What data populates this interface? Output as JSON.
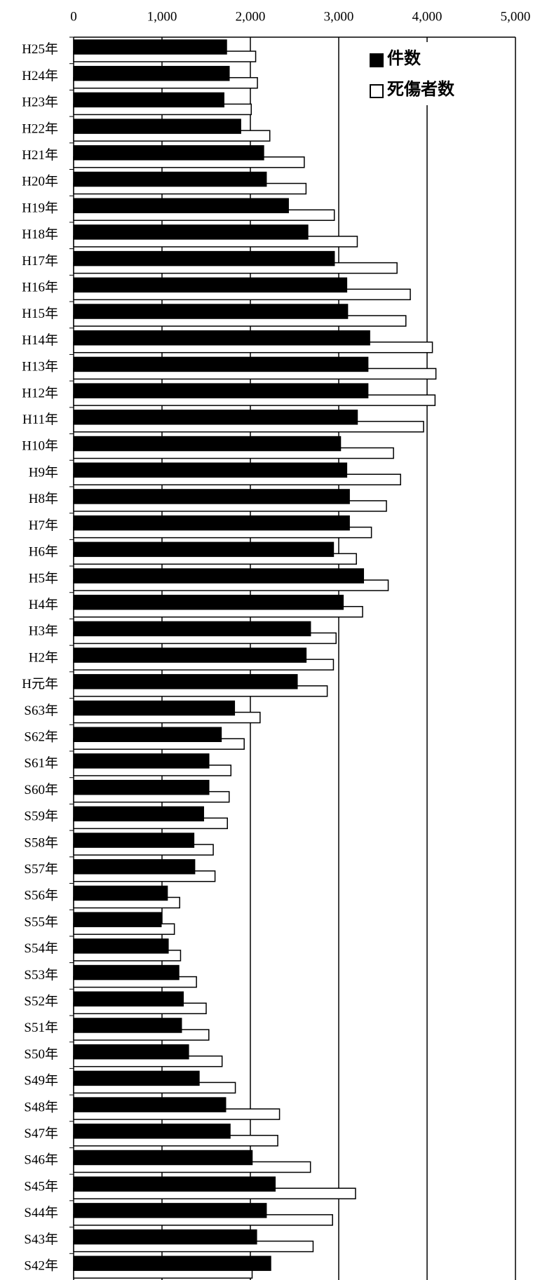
{
  "chart_data": {
    "type": "bar",
    "orientation": "horizontal",
    "categories": [
      "H25年",
      "H24年",
      "H23年",
      "H22年",
      "H21年",
      "H20年",
      "H19年",
      "H18年",
      "H17年",
      "H16年",
      "H15年",
      "H14年",
      "H13年",
      "H12年",
      "H11年",
      "H10年",
      "H9年",
      "H8年",
      "H7年",
      "H6年",
      "H5年",
      "H4年",
      "H3年",
      "H2年",
      "H元年",
      "S63年",
      "S62年",
      "S61年",
      "S60年",
      "S59年",
      "S58年",
      "S57年",
      "S56年",
      "S55年",
      "S54年",
      "S53年",
      "S52年",
      "S51年",
      "S50年",
      "S49年",
      "S48年",
      "S47年",
      "S46年",
      "S45年",
      "S44年",
      "S43年",
      "S42年"
    ],
    "series": [
      {
        "name": "件数",
        "color": "#000000",
        "values": [
          1730,
          1760,
          1700,
          1890,
          2150,
          2180,
          2430,
          2650,
          2950,
          3090,
          3100,
          3350,
          3330,
          3330,
          3210,
          3020,
          3090,
          3120,
          3120,
          2940,
          3280,
          3050,
          2680,
          2630,
          2530,
          1820,
          1670,
          1530,
          1530,
          1470,
          1360,
          1370,
          1060,
          990,
          1070,
          1190,
          1240,
          1220,
          1300,
          1420,
          1720,
          1770,
          2020,
          2280,
          2180,
          2070,
          2230
        ]
      },
      {
        "name": "死傷者数",
        "color": "#ffffff",
        "values": [
          2060,
          2080,
          2010,
          2220,
          2610,
          2630,
          2950,
          3210,
          3660,
          3810,
          3760,
          4060,
          4100,
          4090,
          3960,
          3620,
          3700,
          3540,
          3370,
          3200,
          3560,
          3270,
          2970,
          2940,
          2870,
          2110,
          1930,
          1780,
          1760,
          1740,
          1580,
          1600,
          1200,
          1140,
          1210,
          1390,
          1500,
          1530,
          1680,
          1830,
          2330,
          2310,
          2680,
          3190,
          2930,
          2710,
          2020
        ]
      }
    ],
    "xlim": [
      0,
      5000
    ],
    "xticks": [
      0,
      {
        "value": 1000,
        "label": "1,000"
      },
      {
        "value": 2000,
        "label": "2,000"
      },
      {
        "value": 3000,
        "label": "3,000"
      },
      {
        "value": 4000,
        "label": "4,000"
      },
      {
        "value": 5000,
        "label": "5,000"
      }
    ],
    "grid": true,
    "legend": "upper right"
  }
}
